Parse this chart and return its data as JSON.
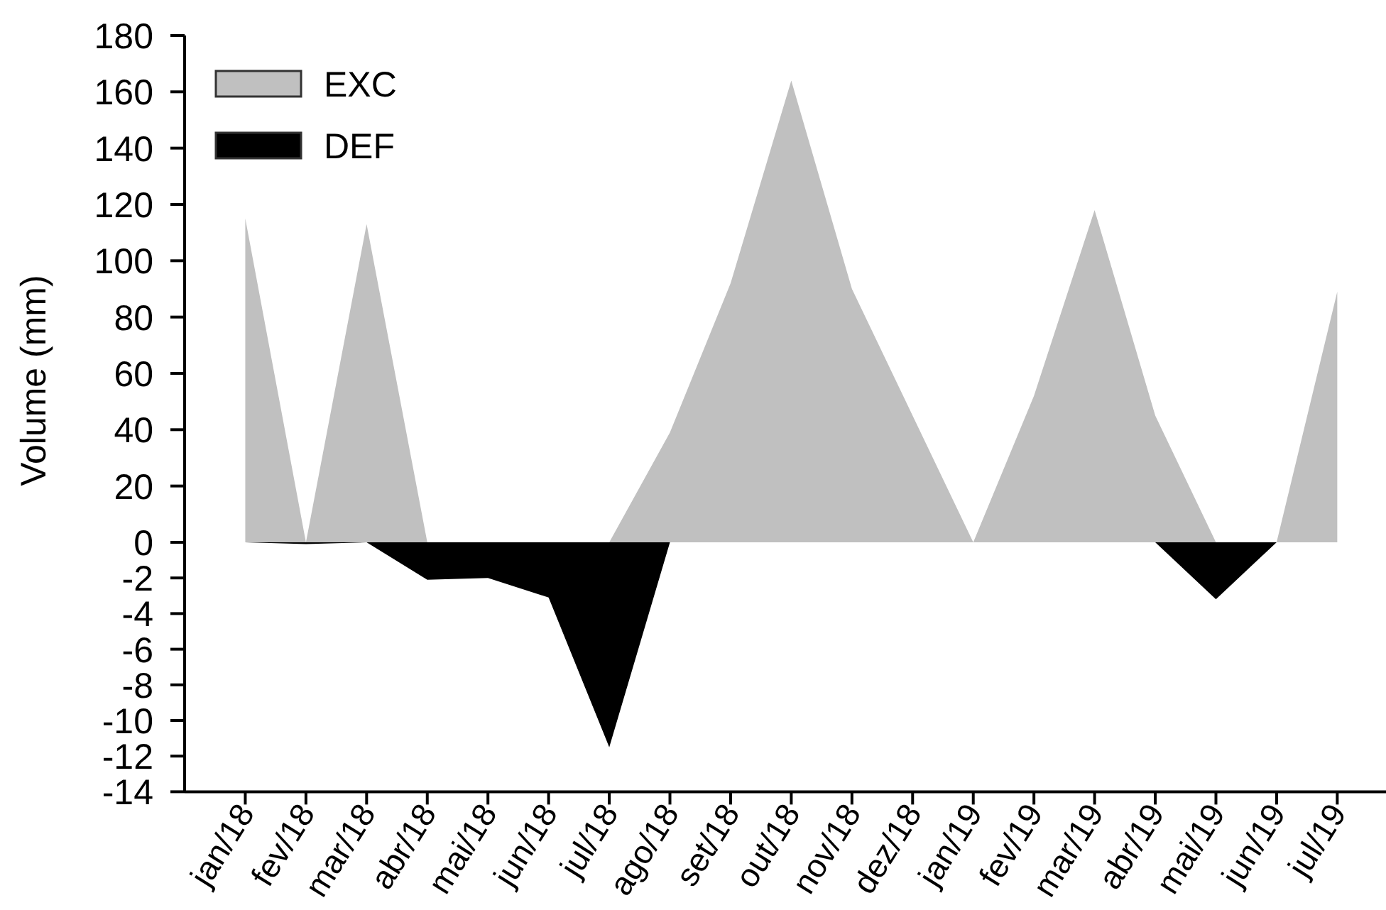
{
  "chart_data": [
    {
      "type": "area",
      "ylabel": "Volume (mm)",
      "categories": [
        null,
        null,
        null,
        null,
        null,
        null,
        null,
        null,
        null,
        null,
        null,
        null,
        null,
        null,
        null,
        null,
        null,
        null,
        null
      ],
      "series": [
        {
          "name": "EXC",
          "color": "#c0c0c0",
          "values": [
            115,
            0,
            113,
            0,
            0,
            0,
            0,
            39,
            92,
            164,
            90,
            45,
            0,
            52,
            118,
            45,
            0,
            0,
            89
          ]
        }
      ],
      "ylim": [
        0,
        180
      ],
      "yticks": [
        0,
        20,
        40,
        60,
        80,
        100,
        120,
        140,
        160,
        180
      ],
      "legend": "top left",
      "tick_labels": "y"
    },
    {
      "type": "area",
      "categories": [
        "jan/18",
        "fev/18",
        "mar/18",
        "abr/18",
        "mai/18",
        "jun/18",
        "jul/18",
        "ago/18",
        "set/18",
        "out/18",
        "nov/18",
        "dez/18",
        "jan/19",
        "fev/19",
        "mar/19",
        "abr/19",
        "mai/19",
        "jun/19",
        "jul/19"
      ],
      "series": [
        {
          "name": "DEF",
          "color": "#000000",
          "values": [
            0,
            -0.1,
            0,
            -2.1,
            -2,
            -3.1,
            -11.5,
            0,
            0,
            0,
            0,
            0,
            0,
            0,
            0,
            0,
            -3.2,
            0,
            0
          ]
        }
      ],
      "ylim": [
        -14,
        0
      ],
      "yticks": [
        -14,
        -12,
        -10,
        -8,
        -6,
        -4,
        -2
      ],
      "legend": "top left"
    }
  ]
}
